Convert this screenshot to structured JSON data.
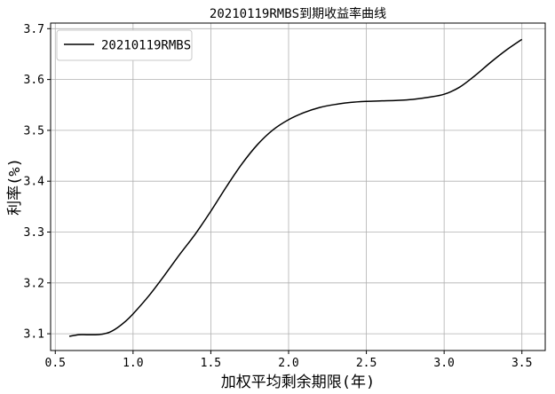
{
  "chart_data": {
    "type": "line",
    "title": "20210119RMBS到期收益率曲线",
    "xlabel": "加权平均剩余期限(年)",
    "ylabel": "利率(%)",
    "xlim": [
      0.47,
      3.65
    ],
    "ylim": [
      3.067,
      3.711
    ],
    "xticks": [
      0.5,
      1.0,
      1.5,
      2.0,
      2.5,
      3.0,
      3.5
    ],
    "xtick_labels": [
      "0.5",
      "1.0",
      "1.5",
      "2.0",
      "2.5",
      "3.0",
      "3.5"
    ],
    "yticks": [
      3.1,
      3.2,
      3.3,
      3.4,
      3.5,
      3.6,
      3.7
    ],
    "ytick_labels": [
      "3.1",
      "3.2",
      "3.3",
      "3.4",
      "3.5",
      "3.6",
      "3.7"
    ],
    "grid": true,
    "legend_position": "top-left",
    "series": [
      {
        "name": "20210119RMBS",
        "color": "#000000",
        "x": [
          0.59,
          0.65,
          0.7,
          0.75,
          0.8,
          0.85,
          0.9,
          0.95,
          1.0,
          1.1,
          1.2,
          1.3,
          1.4,
          1.5,
          1.6,
          1.7,
          1.8,
          1.9,
          2.0,
          2.1,
          2.2,
          2.3,
          2.4,
          2.5,
          2.6,
          2.7,
          2.8,
          2.9,
          3.0,
          3.1,
          3.2,
          3.3,
          3.4,
          3.5
        ],
        "y": [
          3.095,
          3.098,
          3.098,
          3.098,
          3.099,
          3.103,
          3.112,
          3.124,
          3.139,
          3.174,
          3.214,
          3.256,
          3.296,
          3.341,
          3.389,
          3.434,
          3.472,
          3.501,
          3.521,
          3.535,
          3.545,
          3.551,
          3.555,
          3.557,
          3.558,
          3.559,
          3.561,
          3.565,
          3.571,
          3.585,
          3.608,
          3.634,
          3.658,
          3.679
        ]
      }
    ]
  }
}
